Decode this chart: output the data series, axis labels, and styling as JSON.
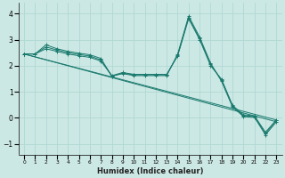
{
  "xlabel": "Humidex (Indice chaleur)",
  "bg_color": "#cce8e4",
  "grid_color": "#b0d8d4",
  "line_color": "#1a7a6e",
  "xlim": [
    -0.5,
    23.5
  ],
  "ylim": [
    -1.4,
    4.4
  ],
  "xticks": [
    0,
    1,
    2,
    3,
    4,
    5,
    6,
    7,
    8,
    9,
    10,
    11,
    12,
    13,
    14,
    15,
    16,
    17,
    18,
    19,
    20,
    21,
    22,
    23
  ],
  "yticks": [
    -1,
    0,
    1,
    2,
    3,
    4
  ],
  "series1_x": [
    0,
    1,
    2,
    3,
    4,
    5,
    6,
    7,
    8,
    9,
    10,
    11,
    12,
    13,
    14,
    15,
    16,
    17,
    18,
    19,
    20,
    21,
    22,
    23
  ],
  "series1_y": [
    2.45,
    2.45,
    2.8,
    2.65,
    2.55,
    2.48,
    2.42,
    2.28,
    1.6,
    1.7,
    1.62,
    1.62,
    1.62,
    1.62,
    2.45,
    3.9,
    3.1,
    2.1,
    1.4,
    0.42,
    0.05,
    0.02,
    -0.65,
    -0.15
  ],
  "series2_x": [
    0,
    1,
    2,
    3,
    4,
    5,
    6,
    7,
    8,
    9,
    10,
    11,
    12,
    13,
    14,
    15,
    16,
    17,
    18,
    19,
    20,
    21,
    22,
    23
  ],
  "series2_y": [
    2.45,
    2.45,
    2.72,
    2.6,
    2.5,
    2.43,
    2.37,
    2.22,
    1.6,
    1.72,
    1.65,
    1.65,
    1.65,
    1.65,
    2.4,
    3.85,
    3.05,
    2.05,
    1.45,
    0.45,
    0.08,
    0.05,
    -0.6,
    -0.1
  ],
  "series3_x": [
    0,
    1,
    2,
    3,
    4,
    5,
    6,
    7,
    8,
    9,
    10,
    11,
    12,
    13,
    14,
    15,
    16,
    17,
    18,
    19,
    20,
    21,
    22,
    23
  ],
  "series3_y": [
    2.45,
    2.45,
    2.65,
    2.55,
    2.45,
    2.38,
    2.32,
    2.18,
    1.62,
    1.74,
    1.67,
    1.67,
    1.67,
    1.67,
    2.38,
    3.8,
    3.0,
    2.0,
    1.48,
    0.48,
    0.12,
    0.08,
    -0.55,
    -0.07
  ],
  "trend1_x": [
    0,
    23
  ],
  "trend1_y": [
    2.45,
    -0.15
  ],
  "trend2_x": [
    0,
    23
  ],
  "trend2_y": [
    2.45,
    -0.08
  ]
}
